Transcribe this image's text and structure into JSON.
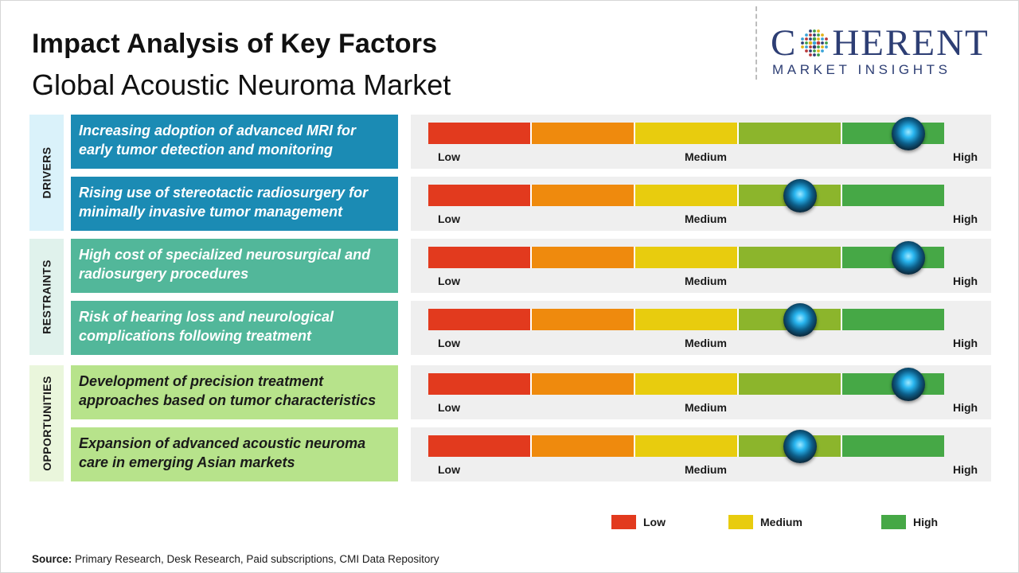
{
  "title": "Impact Analysis of Key Factors",
  "subtitle": "Global Acoustic Neuroma Market",
  "logo": {
    "line1_left": "C",
    "line1_right": "HERENT",
    "line2": "MARKET INSIGHTS"
  },
  "colors": {
    "drivers": "#1b8bb4",
    "drivers_bg": "#daf2fa",
    "restraints": "#52b79a",
    "restraints_bg": "#e0f2ec",
    "opportunities": "#b7e38b",
    "opportunities_bg": "#eaf6dc",
    "scale": [
      "#e23a1e",
      "#ef8a0d",
      "#e8cc0e",
      "#8cb52c",
      "#46a846"
    ]
  },
  "categories": [
    {
      "label": "DRIVERS",
      "key": "drivers"
    },
    {
      "label": "RESTRAINTS",
      "key": "restraints"
    },
    {
      "label": "OPPORTUNITIES",
      "key": "opportunities"
    }
  ],
  "scale_labels": {
    "low": "Low",
    "medium": "Medium",
    "high": "High"
  },
  "chart_data": {
    "type": "table",
    "scale": [
      "Low",
      "Medium",
      "High"
    ],
    "scale_range": [
      0,
      1
    ],
    "rows": [
      {
        "category": "DRIVERS",
        "factor": "Increasing adoption of advanced MRI for early tumor detection and monitoring",
        "impact": 0.93
      },
      {
        "category": "DRIVERS",
        "factor": "Rising use of stereotactic radiosurgery for minimally invasive tumor management",
        "impact": 0.72
      },
      {
        "category": "RESTRAINTS",
        "factor": "High cost of specialized neurosurgical and radiosurgery procedures",
        "impact": 0.93
      },
      {
        "category": "RESTRAINTS",
        "factor": "Risk of hearing loss and neurological complications following treatment",
        "impact": 0.72
      },
      {
        "category": "OPPORTUNITIES",
        "factor": "Development of precision treatment approaches based on tumor characteristics",
        "impact": 0.93
      },
      {
        "category": "OPPORTUNITIES",
        "factor": "Expansion of advanced acoustic neuroma care in emerging Asian markets",
        "impact": 0.72
      }
    ]
  },
  "legend": [
    {
      "label": "Low",
      "color": "#e23a1e"
    },
    {
      "label": "Medium",
      "color": "#e8cc0e"
    },
    {
      "label": "High",
      "color": "#46a846"
    }
  ],
  "source": {
    "label": "Source:",
    "text": " Primary Research, Desk Research, Paid subscriptions, CMI Data Repository"
  }
}
